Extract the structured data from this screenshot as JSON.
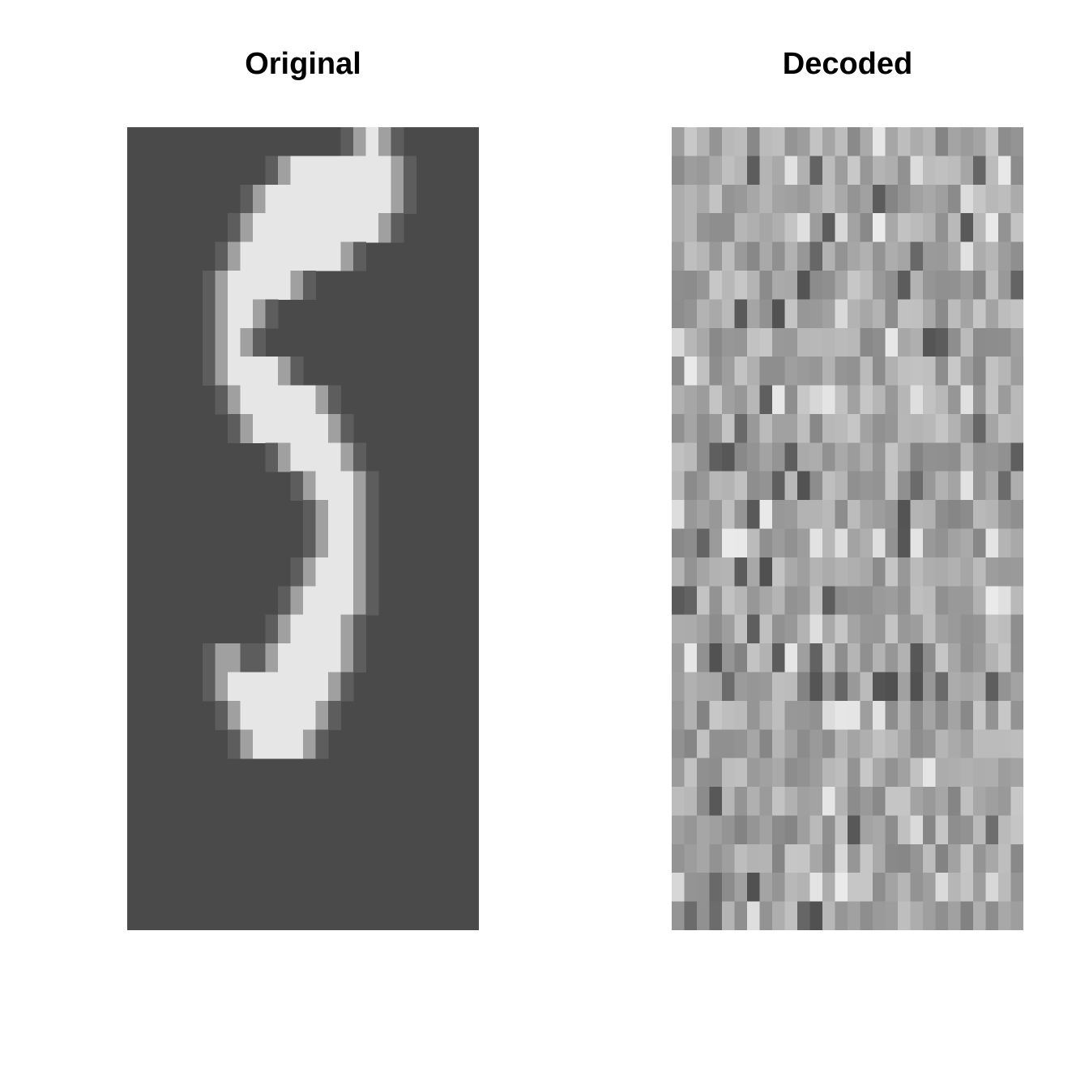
{
  "panels": [
    {
      "id": "original",
      "title": "Original"
    },
    {
      "id": "decoded",
      "title": "Decoded"
    }
  ],
  "image_grid": {
    "columns": 28,
    "rows": 28
  },
  "colors": {
    "original_background": "#4a4a4a",
    "original_stroke": "#e6e6e6"
  }
}
